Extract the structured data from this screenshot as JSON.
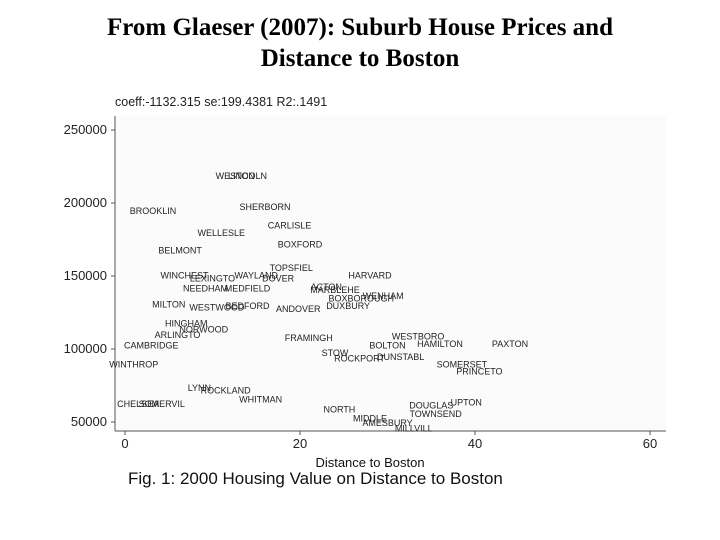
{
  "slide": {
    "title_line1": "From Glaeser (2007): Suburb House Prices and",
    "title_line2": "Distance to Boston"
  },
  "chart_data": {
    "type": "scatter",
    "title": "coeff:-1132.315 se:199.4381 R2:.1491",
    "xlabel": "Distance to Boston",
    "caption": "Fig. 1: 2000 Housing Value on Distance to Boston",
    "xlim": [
      0,
      60
    ],
    "ylim": [
      40000,
      260000
    ],
    "xticks": [
      0,
      20,
      40,
      60
    ],
    "yticks": [
      50000,
      100000,
      150000,
      200000,
      250000
    ],
    "ytick_labels": [
      "50000",
      "100000",
      "150000",
      "200000",
      "250000"
    ],
    "grid": false,
    "points": [
      {
        "label": "WESTON",
        "x": 12.6,
        "y": 218000
      },
      {
        "label": "LINCOLN",
        "x": 14.0,
        "y": 218000
      },
      {
        "label": "BROOKLIN",
        "x": 3.2,
        "y": 194000
      },
      {
        "label": "SHERBORN",
        "x": 16.0,
        "y": 197000
      },
      {
        "label": "CARLISLE",
        "x": 18.8,
        "y": 184000
      },
      {
        "label": "WELLESLE",
        "x": 11.0,
        "y": 179000
      },
      {
        "label": "BOXFORD",
        "x": 20.0,
        "y": 171000
      },
      {
        "label": "BELMONT",
        "x": 6.3,
        "y": 167000
      },
      {
        "label": "TOPSFIEL",
        "x": 19.0,
        "y": 155000
      },
      {
        "label": "WINCHEST",
        "x": 6.8,
        "y": 150000
      },
      {
        "label": "WAYLAND",
        "x": 15.0,
        "y": 150000
      },
      {
        "label": "HARVARD",
        "x": 28.0,
        "y": 150000
      },
      {
        "label": "LEXINGTO",
        "x": 10.0,
        "y": 148000
      },
      {
        "label": "DOVER",
        "x": 17.5,
        "y": 148000
      },
      {
        "label": "NEEDHAM",
        "x": 9.2,
        "y": 141000
      },
      {
        "label": "MEDFIELD",
        "x": 14.0,
        "y": 141000
      },
      {
        "label": "ACTON",
        "x": 23.0,
        "y": 142000
      },
      {
        "label": "MARBLEHE",
        "x": 24.0,
        "y": 140000
      },
      {
        "label": "WENHAM",
        "x": 29.5,
        "y": 136000
      },
      {
        "label": "BOXBOROUGH",
        "x": 27.0,
        "y": 134000
      },
      {
        "label": "MILTON",
        "x": 5.0,
        "y": 130000
      },
      {
        "label": "WESTWOOD",
        "x": 10.5,
        "y": 128000
      },
      {
        "label": "BEDFORD",
        "x": 14.0,
        "y": 129000
      },
      {
        "label": "ANDOVER",
        "x": 19.8,
        "y": 127000
      },
      {
        "label": "DUXBURY",
        "x": 25.5,
        "y": 129000
      },
      {
        "label": "HINGHAM",
        "x": 7.0,
        "y": 117000
      },
      {
        "label": "NORWOOD",
        "x": 9.0,
        "y": 113000
      },
      {
        "label": "ARLINGTO",
        "x": 6.0,
        "y": 109000
      },
      {
        "label": "FRAMINGH",
        "x": 21.0,
        "y": 107000
      },
      {
        "label": "WESTBORO",
        "x": 33.5,
        "y": 108000
      },
      {
        "label": "HAMILTON",
        "x": 36.0,
        "y": 103000
      },
      {
        "label": "PAXTON",
        "x": 44.0,
        "y": 103000
      },
      {
        "label": "CAMBRIDGE",
        "x": 3.0,
        "y": 102000
      },
      {
        "label": "STOW",
        "x": 24.0,
        "y": 97000
      },
      {
        "label": "BOLTON",
        "x": 30.0,
        "y": 102000
      },
      {
        "label": "DUNSTABL",
        "x": 31.5,
        "y": 94000
      },
      {
        "label": "ROCKPORT",
        "x": 26.8,
        "y": 93000
      },
      {
        "label": "WINTHROP",
        "x": 1.0,
        "y": 89000
      },
      {
        "label": "SOMERSET",
        "x": 38.5,
        "y": 89000
      },
      {
        "label": "PRINCETO",
        "x": 40.5,
        "y": 84000
      },
      {
        "label": "LYNN",
        "x": 8.5,
        "y": 73000
      },
      {
        "label": "ROCKLAND",
        "x": 11.5,
        "y": 71000
      },
      {
        "label": "WHITMAN",
        "x": 15.5,
        "y": 65000
      },
      {
        "label": "CHELSEA",
        "x": 1.5,
        "y": 62000
      },
      {
        "label": "SOMERVIL",
        "x": 4.2,
        "y": 62000
      },
      {
        "label": "NORTH",
        "x": 24.5,
        "y": 58000
      },
      {
        "label": "DOUGLAS",
        "x": 35.0,
        "y": 61000
      },
      {
        "label": "UPTON",
        "x": 39.0,
        "y": 63000
      },
      {
        "label": "TOWNSEND",
        "x": 35.5,
        "y": 55000
      },
      {
        "label": "MIDDLE",
        "x": 28.0,
        "y": 52000
      },
      {
        "label": "AMESBURY",
        "x": 30.0,
        "y": 49000
      },
      {
        "label": "MILLVILL",
        "x": 33.0,
        "y": 45000
      }
    ]
  }
}
